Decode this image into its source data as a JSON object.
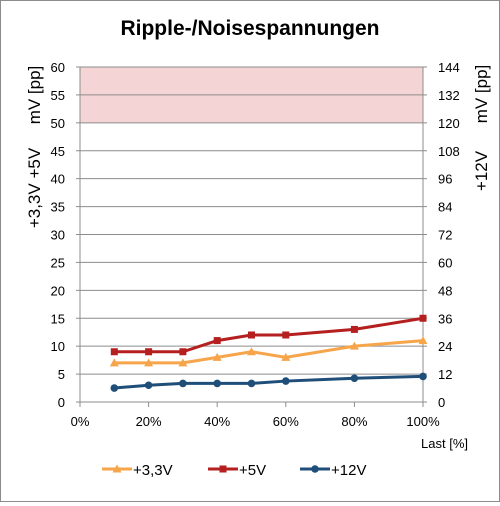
{
  "chart_data": {
    "type": "line",
    "title": "Ripple-/Noisespannungen",
    "xlabel": "Last [%]",
    "ylabel_left": "+3,3V +5V",
    "ylabel_left_unit": "mV [pp]",
    "ylabel_right": "+12V",
    "ylabel_right_unit": "mV [pp]",
    "xlim": [
      0,
      100
    ],
    "ylim_left": [
      0,
      60
    ],
    "ylim_right": [
      0,
      144
    ],
    "x_ticks": [
      "0%",
      "20%",
      "40%",
      "60%",
      "80%",
      "100%"
    ],
    "y_left_ticks": [
      "0",
      "5",
      "10",
      "15",
      "20",
      "25",
      "30",
      "35",
      "40",
      "45",
      "50",
      "55",
      "60"
    ],
    "y_right_ticks": [
      "0",
      "12",
      "24",
      "36",
      "48",
      "60",
      "72",
      "84",
      "96",
      "108",
      "120",
      "132",
      "144"
    ],
    "limit_band": {
      "axis": "left",
      "from": 50,
      "to": 60,
      "color": "#f4d4d4"
    },
    "grid": true,
    "legend_position": "bottom",
    "x": [
      10,
      20,
      30,
      40,
      50,
      60,
      80,
      100
    ],
    "series": [
      {
        "name": "+3,3V",
        "axis": "left",
        "color": "#f7a54a",
        "marker": "triangle",
        "values": [
          7,
          7,
          7,
          8,
          9,
          8,
          10,
          11
        ]
      },
      {
        "name": "+5V",
        "axis": "left",
        "color": "#b51f1f",
        "marker": "square",
        "values": [
          9,
          9,
          9,
          11,
          12,
          12,
          13,
          15
        ]
      },
      {
        "name": "+12V",
        "axis": "right",
        "color": "#1f4e79",
        "marker": "circle",
        "values": [
          6,
          7.2,
          8,
          8,
          8,
          9,
          10.2,
          11
        ]
      }
    ]
  }
}
